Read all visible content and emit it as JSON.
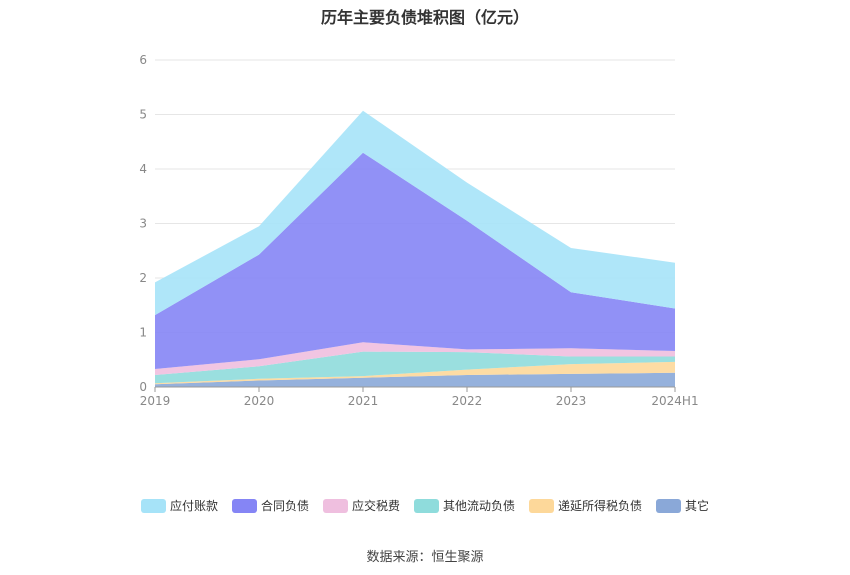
{
  "chart_data": {
    "type": "area",
    "stacked": true,
    "title": "历年主要负债堆积图（亿元）",
    "categories": [
      "2019",
      "2020",
      "2021",
      "2022",
      "2023",
      "2024H1"
    ],
    "ylim": [
      0,
      6
    ],
    "yticks": [
      0,
      1,
      2,
      3,
      4,
      5,
      6
    ],
    "grid": true,
    "legend_position": "bottom",
    "series": [
      {
        "name": "其它",
        "color": "#8aa8d8",
        "values": [
          0.05,
          0.12,
          0.17,
          0.22,
          0.24,
          0.26
        ]
      },
      {
        "name": "递延所得税负债",
        "color": "#fdd89a",
        "values": [
          0.02,
          0.03,
          0.03,
          0.1,
          0.18,
          0.2
        ]
      },
      {
        "name": "其他流动负债",
        "color": "#8fdcdc",
        "values": [
          0.15,
          0.23,
          0.45,
          0.32,
          0.14,
          0.1
        ]
      },
      {
        "name": "应交税费",
        "color": "#efbfdf",
        "values": [
          0.11,
          0.13,
          0.17,
          0.05,
          0.15,
          0.1
        ]
      },
      {
        "name": "合同负债",
        "color": "#8585f5",
        "values": [
          0.99,
          1.92,
          3.48,
          2.36,
          1.03,
          0.78
        ]
      },
      {
        "name": "应付账款",
        "color": "#a6e3f8",
        "values": [
          0.6,
          0.52,
          0.77,
          0.7,
          0.81,
          0.84
        ]
      }
    ],
    "legend_order": [
      "应付账款",
      "合同负债",
      "应交税费",
      "其他流动负债",
      "递延所得税负债",
      "其它"
    ]
  },
  "source_text": "数据来源：恒生聚源"
}
